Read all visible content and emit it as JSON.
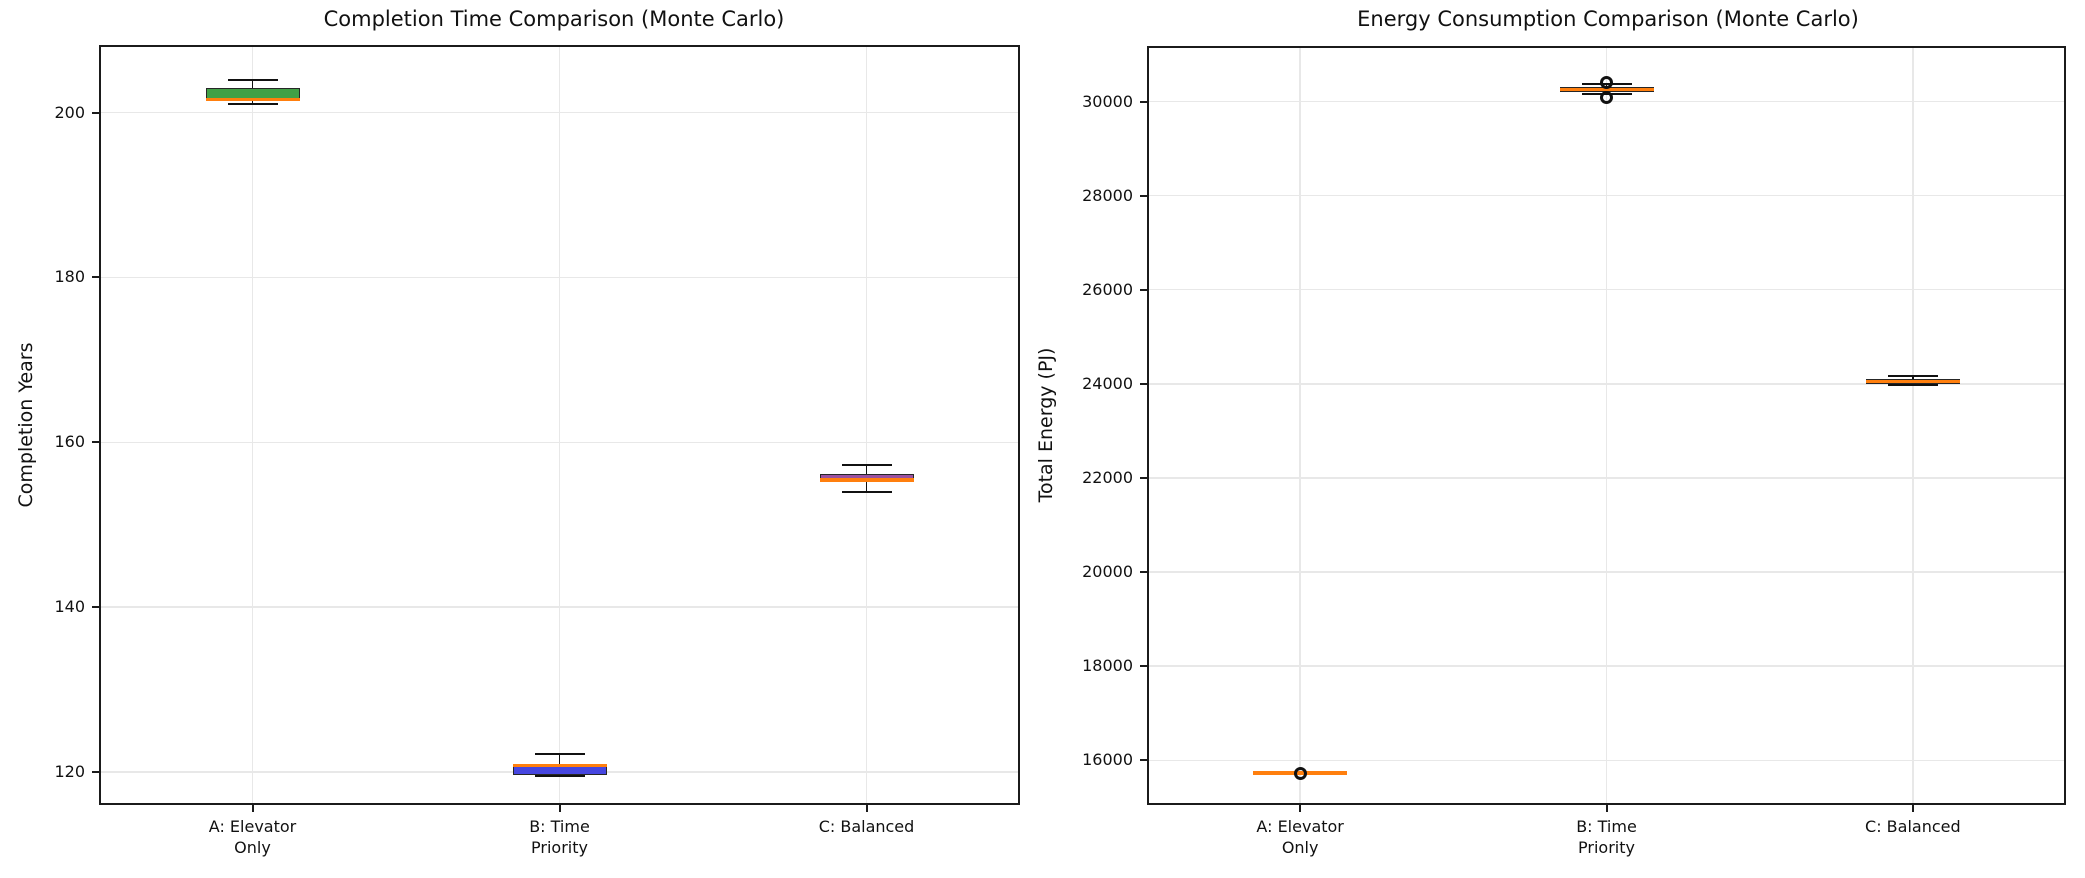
{
  "figure": {
    "background": "#ffffff",
    "grid_color": "#e8e8e8",
    "spine_color": "#1b1b1b",
    "text_color": "#111111",
    "box_edge_color": "#262626",
    "median_color": "#ff7f0e"
  },
  "chart_data": [
    {
      "type": "box",
      "title": "Completion Time Comparison (Monte Carlo)",
      "ylabel": "Completion Years",
      "ylim": [
        116.0,
        208.2
      ],
      "yticks": [
        120,
        140,
        160,
        180,
        200
      ],
      "grid": true,
      "legend": "none",
      "categories": [
        [
          "A: Elevator",
          "Only"
        ],
        [
          "B: Time",
          "Priority"
        ],
        [
          "C: Balanced"
        ]
      ],
      "boxes": [
        {
          "name": "A: Elevator Only",
          "fill": "#41a046",
          "whislo": 201.0,
          "q1": 201.4,
          "med": 201.6,
          "q3": 203.0,
          "whishi": 204.0,
          "fliers": []
        },
        {
          "name": "B: Time Priority",
          "fill": "#4646e0",
          "whislo": 119.5,
          "q1": 119.6,
          "med": 120.8,
          "q3": 121.0,
          "whishi": 122.2,
          "fliers": []
        },
        {
          "name": "C: Balanced",
          "fill": "#9b51a0",
          "whislo": 154.0,
          "q1": 155.2,
          "med": 155.4,
          "q3": 156.2,
          "whishi": 157.2,
          "fliers": []
        }
      ]
    },
    {
      "type": "box",
      "title": "Energy Consumption Comparison (Monte Carlo)",
      "ylabel": "Total Energy (PJ)",
      "ylim": [
        15050,
        31180
      ],
      "yticks": [
        16000,
        18000,
        20000,
        22000,
        24000,
        26000,
        28000,
        30000
      ],
      "grid": true,
      "legend": "none",
      "categories": [
        [
          "A: Elevator",
          "Only"
        ],
        [
          "B: Time",
          "Priority"
        ],
        [
          "C: Balanced"
        ]
      ],
      "boxes": [
        {
          "name": "A: Elevator Only",
          "fill": "#41a046",
          "whislo": 15700,
          "q1": 15715,
          "med": 15730,
          "q3": 15745,
          "whishi": 15760,
          "fliers": [
            15730
          ]
        },
        {
          "name": "B: Time Priority",
          "fill": "#4646e0",
          "whislo": 30150,
          "q1": 30210,
          "med": 30260,
          "q3": 30310,
          "whishi": 30370,
          "fliers": [
            30090,
            30410
          ]
        },
        {
          "name": "C: Balanced",
          "fill": "#9b51a0",
          "whislo": 23970,
          "q1": 24000,
          "med": 24050,
          "q3": 24105,
          "whishi": 24170,
          "fliers": []
        }
      ]
    }
  ]
}
